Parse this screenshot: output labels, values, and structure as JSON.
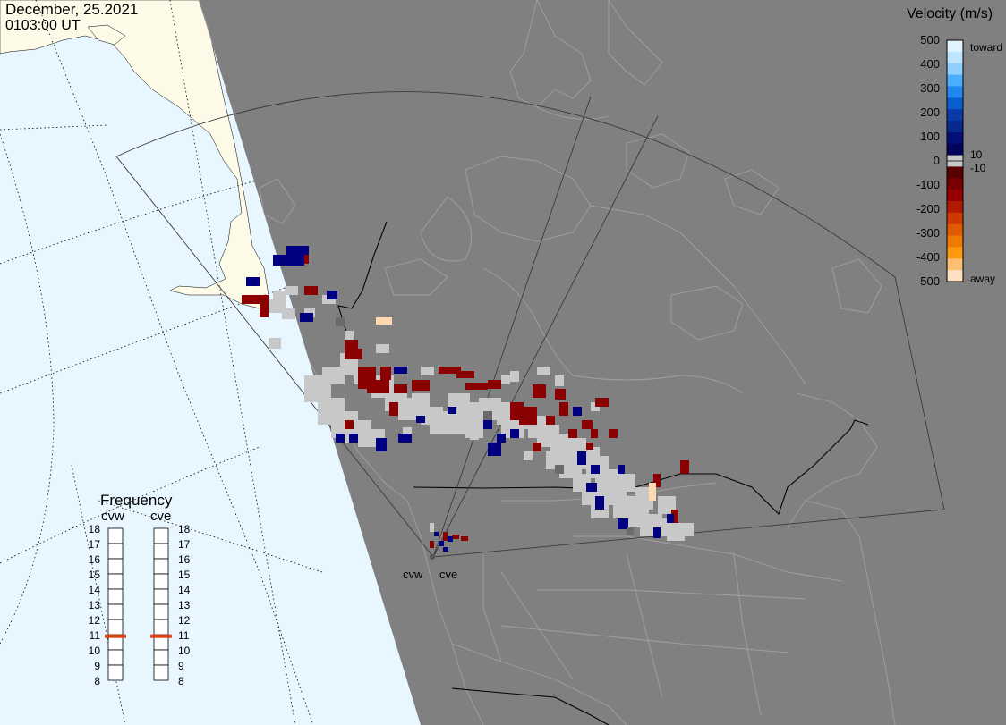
{
  "header": {
    "date": "December, 25.2021",
    "time": "0103:00 UT"
  },
  "colors": {
    "ocean": "#e8f6ff",
    "night": "#808080",
    "land_day": "#fdfbe8",
    "coastline_night": "#a0a0a0",
    "border": "#000000"
  },
  "legend": {
    "title": "Velocity (m/s)",
    "ticks": [
      "500",
      "400",
      "300",
      "200",
      "100",
      "0",
      "-100",
      "-200",
      "-300",
      "-400",
      "-500"
    ],
    "toward_label": "toward",
    "away_label": "away",
    "pos_threshold": "10",
    "neg_threshold": "-10",
    "swatches": [
      "#e0f4ff",
      "#bfe6ff",
      "#8fd0ff",
      "#4aaeff",
      "#1e8af0",
      "#0a5fd0",
      "#0a3aa8",
      "#062a90",
      "#040f7a",
      "#02055a",
      "#c8c8c8",
      "#5a0000",
      "#7a0000",
      "#960000",
      "#b01a00",
      "#cc3a00",
      "#e05a00",
      "#f07a00",
      "#ff9a10",
      "#ffbf70",
      "#ffe0c0"
    ]
  },
  "frequency": {
    "title": "Frequency",
    "radars": [
      {
        "name": "cvw",
        "value": 10.9
      },
      {
        "name": "cve",
        "value": 10.9
      }
    ],
    "ticks": [
      "18",
      "17",
      "16",
      "15",
      "14",
      "13",
      "12",
      "11",
      "10",
      "9",
      "8"
    ],
    "marker_color": "#e04010"
  },
  "radars": [
    {
      "label": "cvw"
    },
    {
      "label": "cve"
    }
  ],
  "velocity_palette": {
    "gs": "#c8c8c8",
    "away": "#8b0000",
    "toward": "#000080",
    "fast_away": "#ffd8b0"
  }
}
